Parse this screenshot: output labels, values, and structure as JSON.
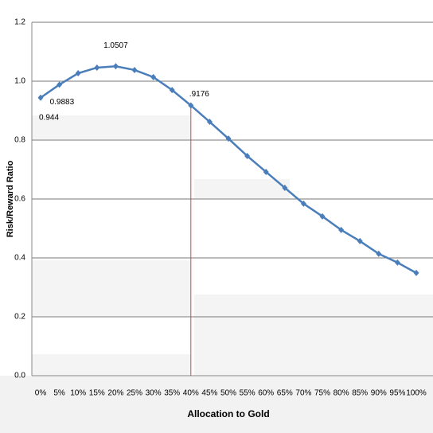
{
  "chart_data": {
    "type": "line",
    "y_label": "Risk/Reward Ratio",
    "x_label": "Allocation to Gold",
    "categories": [
      "0%",
      "5%",
      "10%",
      "15%",
      "20%",
      "25%",
      "30%",
      "35%",
      "40%",
      "45%",
      "50%",
      "55%",
      "60%",
      "65%",
      "70%",
      "75%",
      "80%",
      "85%",
      "90%",
      "95%",
      "100%"
    ],
    "series": [
      {
        "name": "Risk/Reward Ratio",
        "color": "#4a7ebb",
        "values": [
          0.944,
          0.9883,
          1.027,
          1.046,
          1.0507,
          1.038,
          1.014,
          0.97,
          0.9176,
          0.862,
          0.805,
          0.746,
          0.692,
          0.638,
          0.584,
          0.541,
          0.495,
          0.457,
          0.414,
          0.384,
          0.349
        ],
        "value_labels": [
          "0.944",
          "0.9883",
          null,
          null,
          "1.0507",
          null,
          null,
          null,
          ".9176",
          null,
          null,
          null,
          null,
          null,
          null,
          null,
          null,
          null,
          null,
          null,
          null
        ]
      }
    ],
    "ylim": [
      0,
      1.2
    ],
    "yticks": [
      {
        "value": 0,
        "label": "0.0"
      },
      0.2,
      0.4,
      0.6,
      0.8,
      {
        "value": 1,
        "label": "1.0"
      },
      1.2
    ],
    "grid": true,
    "vline": {
      "x": "40%",
      "color": "#c0504d"
    }
  }
}
